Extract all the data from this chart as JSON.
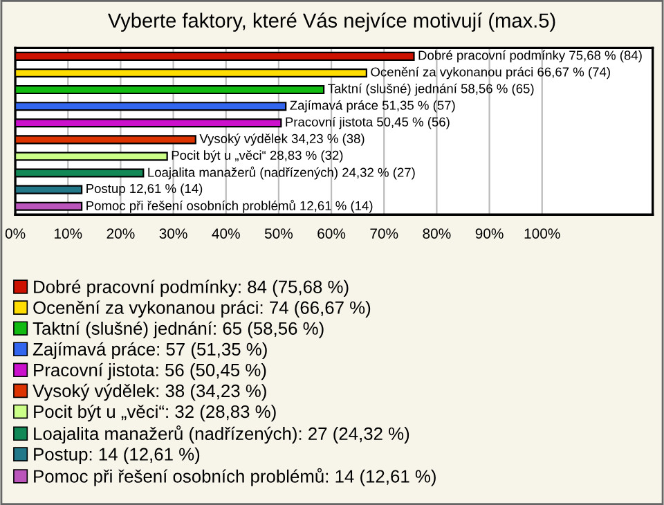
{
  "chart_data": {
    "type": "bar",
    "orientation": "horizontal",
    "title": "Vyberte faktory, které Vás nejvíce motivují (max.5)",
    "categories": [
      "Dobré pracovní podmínky",
      "Ocenění za vykonanou práci",
      "Taktní (slušné) jednání",
      "Zajímavá práce",
      "Pracovní jistota",
      "Vysoký výdělek",
      "Pocit být u „věci“",
      "Loajalita manažerů (nadřízených)",
      "Postup",
      "Pomoc při řešení osobních problémů"
    ],
    "series": [
      {
        "name": "Dobré pracovní podmínky: 84 (75,68 %)",
        "color": "#cc1100",
        "values": [
          75.68,
          null,
          null,
          null,
          null,
          null,
          null,
          null,
          null,
          null
        ],
        "value_labels": [
          "75,68 % (84)",
          null,
          null,
          null,
          null,
          null,
          null,
          null,
          null,
          null
        ]
      },
      {
        "name": "Ocenění za vykonanou práci: 74 (66,67 %)",
        "color": "#ffdd00",
        "values": [
          null,
          66.67,
          null,
          null,
          null,
          null,
          null,
          null,
          null,
          null
        ],
        "value_labels": [
          null,
          "66,67 % (74)",
          null,
          null,
          null,
          null,
          null,
          null,
          null,
          null
        ]
      },
      {
        "name": "Taktní (slušné) jednání: 65 (58,56 %)",
        "color": "#11bb11",
        "values": [
          null,
          null,
          58.56,
          null,
          null,
          null,
          null,
          null,
          null,
          null
        ],
        "value_labels": [
          null,
          null,
          "58,56 % (65)",
          null,
          null,
          null,
          null,
          null,
          null,
          null
        ]
      },
      {
        "name": "Zajímavá práce: 57 (51,35 %)",
        "color": "#3366ee",
        "values": [
          null,
          null,
          null,
          51.35,
          null,
          null,
          null,
          null,
          null,
          null
        ],
        "value_labels": [
          null,
          null,
          null,
          "51,35 % (57)",
          null,
          null,
          null,
          null,
          null,
          null
        ]
      },
      {
        "name": "Pracovní jistota: 56 (50,45 %)",
        "color": "#cc11cc",
        "values": [
          null,
          null,
          null,
          null,
          50.45,
          null,
          null,
          null,
          null,
          null
        ],
        "value_labels": [
          null,
          null,
          null,
          null,
          "50,45 % (56)",
          null,
          null,
          null,
          null,
          null
        ]
      },
      {
        "name": "Vysoký výdělek: 38 (34,23 %)",
        "color": "#dd3300",
        "values": [
          null,
          null,
          null,
          null,
          null,
          34.23,
          null,
          null,
          null,
          null
        ],
        "value_labels": [
          null,
          null,
          null,
          null,
          null,
          "34,23 % (38)",
          null,
          null,
          null,
          null
        ]
      },
      {
        "name": "Pocit být u „věci“: 32 (28,83 %)",
        "color": "#ccff88",
        "values": [
          null,
          null,
          null,
          null,
          null,
          null,
          28.83,
          null,
          null,
          null
        ],
        "value_labels": [
          null,
          null,
          null,
          null,
          null,
          null,
          "28,83 % (32)",
          null,
          null,
          null
        ]
      },
      {
        "name": "Loajalita manažerů (nadřízených): 27 (24,32 %)",
        "color": "#118855",
        "values": [
          null,
          null,
          null,
          null,
          null,
          null,
          null,
          24.32,
          null,
          null
        ],
        "value_labels": [
          null,
          null,
          null,
          null,
          null,
          null,
          null,
          "24,32 % (27)",
          null,
          null
        ]
      },
      {
        "name": "Postup: 14 (12,61 %)",
        "color": "#227788",
        "values": [
          null,
          null,
          null,
          null,
          null,
          null,
          null,
          null,
          12.61,
          null
        ],
        "value_labels": [
          null,
          null,
          null,
          null,
          null,
          null,
          null,
          null,
          "12,61 % (14)",
          null
        ]
      },
      {
        "name": "Pomoc při řešení osobních problémů: 14 (12,61 %)",
        "color": "#bb55bb",
        "values": [
          null,
          null,
          null,
          null,
          null,
          null,
          null,
          null,
          null,
          12.61
        ],
        "value_labels": [
          null,
          null,
          null,
          null,
          null,
          null,
          null,
          null,
          null,
          "12,61 % (14)"
        ]
      }
    ],
    "xlim": [
      0,
      121
    ],
    "xticks": [
      {
        "value": 0,
        "label": "0%"
      },
      {
        "value": 10,
        "label": "10%"
      },
      {
        "value": 20,
        "label": "20%"
      },
      {
        "value": 30,
        "label": "30%"
      },
      {
        "value": 40,
        "label": "40%"
      },
      {
        "value": 50,
        "label": "50%"
      },
      {
        "value": 60,
        "label": "60%"
      },
      {
        "value": 70,
        "label": "70%"
      },
      {
        "value": 80,
        "label": "80%"
      },
      {
        "value": 90,
        "label": "90%"
      },
      {
        "value": 100,
        "label": "100%"
      }
    ],
    "grid": "x",
    "legend": "bottom"
  }
}
